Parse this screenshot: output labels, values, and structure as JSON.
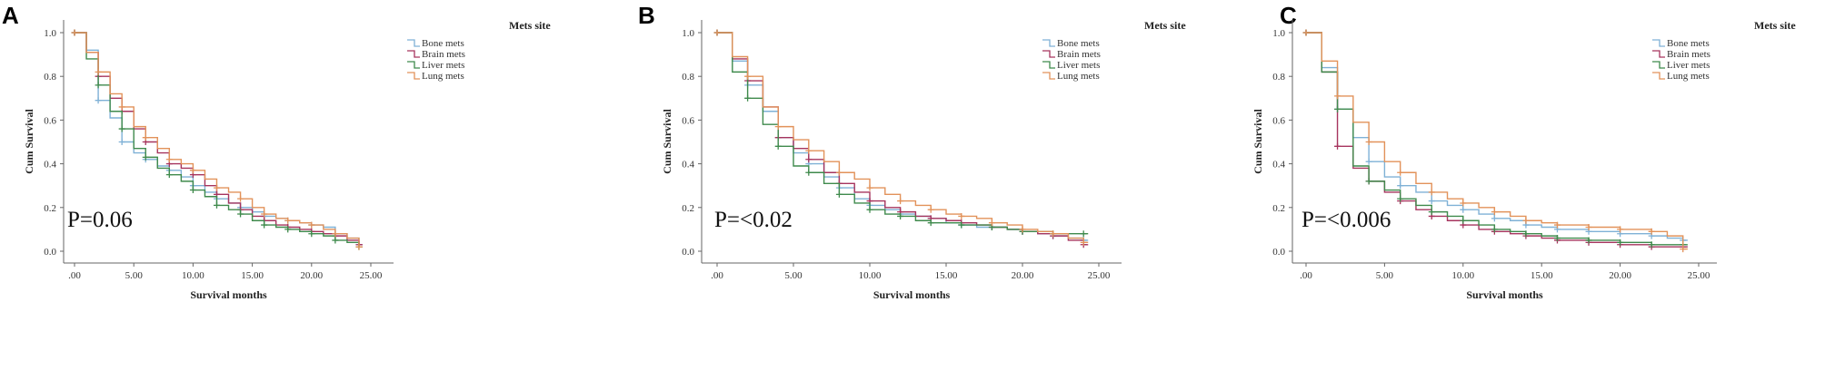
{
  "chart_data": [
    {
      "type": "line",
      "panel_letter": "A",
      "annotation": "P=0.06",
      "xlabel": "Survival months",
      "ylabel": "Cum Survival",
      "xlim": [
        0,
        25
      ],
      "ylim": [
        0,
        1
      ],
      "x_ticks": [
        ".00",
        "5.00",
        "10.00",
        "15.00",
        "20.00",
        "25.00"
      ],
      "y_ticks": [
        "0.0",
        "0.2",
        "0.4",
        "0.6",
        "0.8",
        "1.0"
      ],
      "grid": false,
      "legend": {
        "title": "Mets site",
        "position": "top-right"
      },
      "x": [
        0,
        1,
        2,
        3,
        4,
        5,
        6,
        7,
        8,
        9,
        10,
        11,
        12,
        13,
        14,
        15,
        16,
        17,
        18,
        19,
        20,
        21,
        22,
        23,
        24
      ],
      "series": [
        {
          "name": "Bone mets",
          "color": "#7fb1d6",
          "values": [
            1.0,
            0.92,
            0.69,
            0.61,
            0.5,
            0.45,
            0.42,
            0.39,
            0.37,
            0.34,
            0.3,
            0.27,
            0.24,
            0.22,
            0.2,
            0.18,
            0.16,
            0.15,
            0.14,
            0.13,
            0.12,
            0.11,
            0.08,
            0.06,
            0.03
          ]
        },
        {
          "name": "Brain mets",
          "color": "#a6345e",
          "values": [
            1.0,
            0.91,
            0.8,
            0.7,
            0.64,
            0.56,
            0.5,
            0.45,
            0.4,
            0.38,
            0.35,
            0.3,
            0.26,
            0.22,
            0.19,
            0.16,
            0.14,
            0.12,
            0.11,
            0.1,
            0.09,
            0.08,
            0.07,
            0.05,
            0.03
          ]
        },
        {
          "name": "Liver mets",
          "color": "#3f8a4c",
          "values": [
            1.0,
            0.88,
            0.76,
            0.64,
            0.56,
            0.47,
            0.43,
            0.38,
            0.35,
            0.32,
            0.28,
            0.25,
            0.21,
            0.19,
            0.17,
            0.14,
            0.12,
            0.11,
            0.1,
            0.09,
            0.08,
            0.07,
            0.05,
            0.04,
            0.02
          ]
        },
        {
          "name": "Lung mets",
          "color": "#e2925a",
          "values": [
            1.0,
            0.91,
            0.82,
            0.72,
            0.66,
            0.57,
            0.52,
            0.47,
            0.42,
            0.4,
            0.37,
            0.33,
            0.29,
            0.27,
            0.24,
            0.2,
            0.17,
            0.15,
            0.14,
            0.13,
            0.12,
            0.1,
            0.08,
            0.06,
            0.02
          ]
        }
      ]
    },
    {
      "type": "line",
      "panel_letter": "B",
      "annotation": "P=<0.02",
      "xlabel": "Survival months",
      "ylabel": "Cum Survival",
      "xlim": [
        0,
        25
      ],
      "ylim": [
        0,
        1
      ],
      "x_ticks": [
        ".00",
        "5.00",
        "10.00",
        "15.00",
        "20.00",
        "25.00"
      ],
      "y_ticks": [
        "0.0",
        "0.2",
        "0.4",
        "0.6",
        "0.8",
        "1.0"
      ],
      "grid": false,
      "legend": {
        "title": "Mets site",
        "position": "top-right"
      },
      "x": [
        0,
        1,
        2,
        3,
        4,
        5,
        6,
        7,
        8,
        9,
        10,
        11,
        12,
        13,
        14,
        15,
        16,
        17,
        18,
        19,
        20,
        21,
        22,
        23,
        24
      ],
      "series": [
        {
          "name": "Bone mets",
          "color": "#7fb1d6",
          "values": [
            1.0,
            0.87,
            0.76,
            0.64,
            0.52,
            0.45,
            0.4,
            0.34,
            0.29,
            0.24,
            0.21,
            0.19,
            0.17,
            0.16,
            0.15,
            0.13,
            0.12,
            0.11,
            0.11,
            0.1,
            0.09,
            0.08,
            0.07,
            0.06,
            0.05
          ]
        },
        {
          "name": "Brain mets",
          "color": "#a6345e",
          "values": [
            1.0,
            0.88,
            0.78,
            0.66,
            0.52,
            0.47,
            0.42,
            0.36,
            0.31,
            0.27,
            0.23,
            0.2,
            0.18,
            0.16,
            0.15,
            0.14,
            0.13,
            0.12,
            0.11,
            0.1,
            0.09,
            0.08,
            0.07,
            0.05,
            0.03
          ]
        },
        {
          "name": "Liver mets",
          "color": "#3f8a4c",
          "values": [
            1.0,
            0.82,
            0.7,
            0.58,
            0.48,
            0.39,
            0.36,
            0.31,
            0.26,
            0.22,
            0.19,
            0.17,
            0.16,
            0.14,
            0.13,
            0.13,
            0.12,
            0.12,
            0.11,
            0.1,
            0.09,
            0.09,
            0.08,
            0.08,
            0.08
          ]
        },
        {
          "name": "Lung mets",
          "color": "#e2925a",
          "values": [
            1.0,
            0.89,
            0.8,
            0.66,
            0.57,
            0.51,
            0.46,
            0.41,
            0.36,
            0.33,
            0.29,
            0.26,
            0.23,
            0.21,
            0.19,
            0.17,
            0.16,
            0.15,
            0.13,
            0.12,
            0.1,
            0.09,
            0.08,
            0.06,
            0.04
          ]
        }
      ]
    },
    {
      "type": "line",
      "panel_letter": "C",
      "annotation": "P=<0.006",
      "xlabel": "Survival months",
      "ylabel": "Cum Survival",
      "xlim": [
        0,
        25
      ],
      "ylim": [
        0,
        1
      ],
      "x_ticks": [
        ".00",
        "5.00",
        "10.00",
        "15.00",
        "20.00",
        "25.00"
      ],
      "y_ticks": [
        "0.0",
        "0.2",
        "0.4",
        "0.6",
        "0.8",
        "1.0"
      ],
      "grid": false,
      "legend": {
        "title": "Mets site",
        "position": "top-right"
      },
      "x": [
        0,
        1,
        2,
        3,
        4,
        5,
        6,
        7,
        8,
        9,
        10,
        11,
        12,
        13,
        14,
        15,
        16,
        17,
        18,
        19,
        20,
        21,
        22,
        23,
        24
      ],
      "series": [
        {
          "name": "Bone mets",
          "color": "#7fb1d6",
          "values": [
            1.0,
            0.84,
            0.65,
            0.52,
            0.41,
            0.34,
            0.3,
            0.27,
            0.23,
            0.21,
            0.19,
            0.17,
            0.15,
            0.14,
            0.12,
            0.11,
            0.1,
            0.1,
            0.09,
            0.09,
            0.08,
            0.08,
            0.07,
            0.06,
            0.05
          ]
        },
        {
          "name": "Brain mets",
          "color": "#a6345e",
          "values": [
            1.0,
            0.82,
            0.48,
            0.38,
            0.32,
            0.27,
            0.23,
            0.19,
            0.16,
            0.14,
            0.12,
            0.1,
            0.09,
            0.08,
            0.07,
            0.06,
            0.05,
            0.05,
            0.04,
            0.04,
            0.03,
            0.03,
            0.02,
            0.02,
            0.02
          ]
        },
        {
          "name": "Liver mets",
          "color": "#3f8a4c",
          "values": [
            1.0,
            0.82,
            0.65,
            0.39,
            0.32,
            0.28,
            0.24,
            0.21,
            0.18,
            0.16,
            0.14,
            0.12,
            0.1,
            0.09,
            0.08,
            0.07,
            0.06,
            0.06,
            0.05,
            0.05,
            0.04,
            0.04,
            0.03,
            0.03,
            0.03
          ]
        },
        {
          "name": "Lung mets",
          "color": "#e2925a",
          "values": [
            1.0,
            0.87,
            0.71,
            0.59,
            0.5,
            0.41,
            0.36,
            0.31,
            0.27,
            0.24,
            0.22,
            0.2,
            0.18,
            0.16,
            0.14,
            0.13,
            0.12,
            0.12,
            0.11,
            0.11,
            0.1,
            0.1,
            0.09,
            0.07,
            0.01
          ]
        }
      ]
    }
  ]
}
